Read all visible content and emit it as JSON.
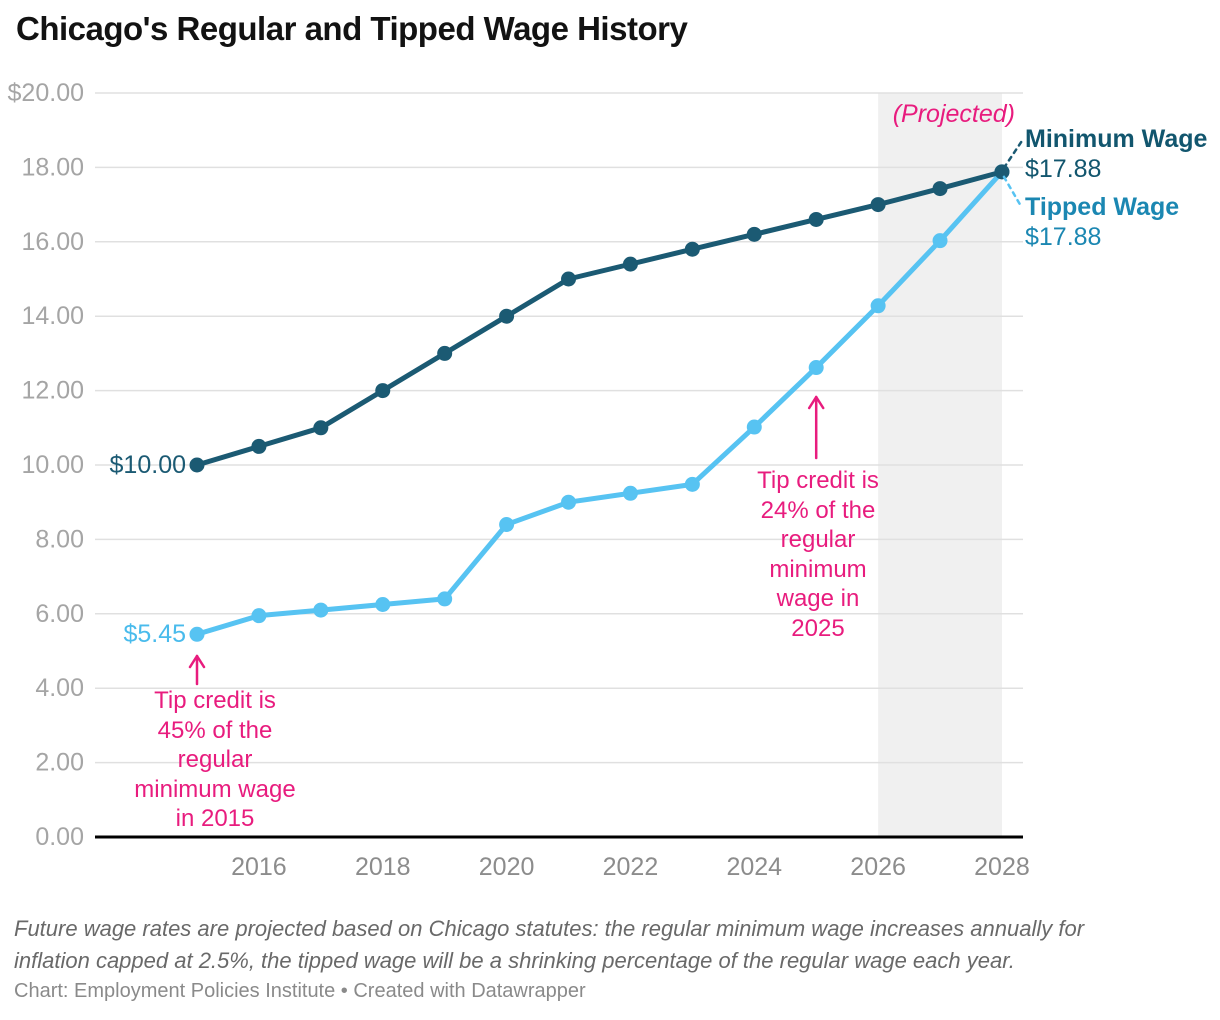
{
  "title": "Chicago's Regular and Tipped Wage History",
  "colors": {
    "minimum_wage_line": "#1b5a73",
    "minimum_wage_text": "#12566e",
    "tipped_wage_line": "#57c3f2",
    "tipped_wage_text": "#1b87b2",
    "tipped_start_label": "#49bbec",
    "annotation_pink": "#e81c7e",
    "gridline": "#e0e0e0",
    "axis_line": "#000000",
    "projected_fill": "#f0f0f0",
    "y_tick_label": "#a5a5a5",
    "x_tick_label": "#8c8c8c"
  },
  "chart_data": {
    "type": "line",
    "title": "Chicago's Regular and Tipped Wage History",
    "xlabel": "",
    "ylabel": "",
    "ylim": [
      0,
      20
    ],
    "grid": "horizontal",
    "x": [
      2015,
      2016,
      2017,
      2018,
      2019,
      2020,
      2021,
      2022,
      2023,
      2024,
      2025,
      2026,
      2027,
      2028
    ],
    "series": [
      {
        "name": "Minimum Wage",
        "values": [
          10.0,
          10.5,
          11.0,
          12.0,
          13.0,
          14.0,
          15.0,
          15.4,
          15.8,
          16.2,
          16.6,
          17.0,
          17.43,
          17.88
        ],
        "start_label": "$10.00",
        "end_label": "$17.88"
      },
      {
        "name": "Tipped Wage",
        "values": [
          5.45,
          5.95,
          6.1,
          6.25,
          6.4,
          8.4,
          9.0,
          9.24,
          9.48,
          11.02,
          12.62,
          14.28,
          16.03,
          17.88
        ],
        "start_label": "$5.45",
        "end_label": "$17.88"
      }
    ],
    "y_ticks": [
      {
        "value": 20,
        "label": "$20.00"
      },
      {
        "value": 18,
        "label": "18.00"
      },
      {
        "value": 16,
        "label": "16.00"
      },
      {
        "value": 14,
        "label": "14.00"
      },
      {
        "value": 12,
        "label": "12.00"
      },
      {
        "value": 10,
        "label": "10.00"
      },
      {
        "value": 8,
        "label": "8.00"
      },
      {
        "value": 6,
        "label": "6.00"
      },
      {
        "value": 4,
        "label": "4.00"
      },
      {
        "value": 2,
        "label": "2.00"
      },
      {
        "value": 0,
        "label": "0.00"
      }
    ],
    "x_ticks": [
      2016,
      2018,
      2020,
      2022,
      2024,
      2026,
      2028
    ],
    "projected_region": {
      "from": 2026,
      "to": 2028,
      "label": "(Projected)"
    },
    "annotations": [
      {
        "anchor_year": 2015,
        "lines": [
          "Tip credit is",
          "45% of the",
          "regular",
          "minimum wage",
          "in 2015"
        ]
      },
      {
        "anchor_year": 2025,
        "lines": [
          "Tip credit is",
          "24% of the",
          "regular",
          "minimum",
          "wage in",
          "2025"
        ]
      }
    ]
  },
  "footer": {
    "note_lines": [
      "Future wage rates are projected based on Chicago statutes: the regular minimum wage increases annually for",
      "inflation capped at 2.5%, the tipped wage will be a shrinking percentage of the regular wage each year."
    ],
    "byline": "Chart: Employment Policies Institute • Created with Datawrapper"
  }
}
